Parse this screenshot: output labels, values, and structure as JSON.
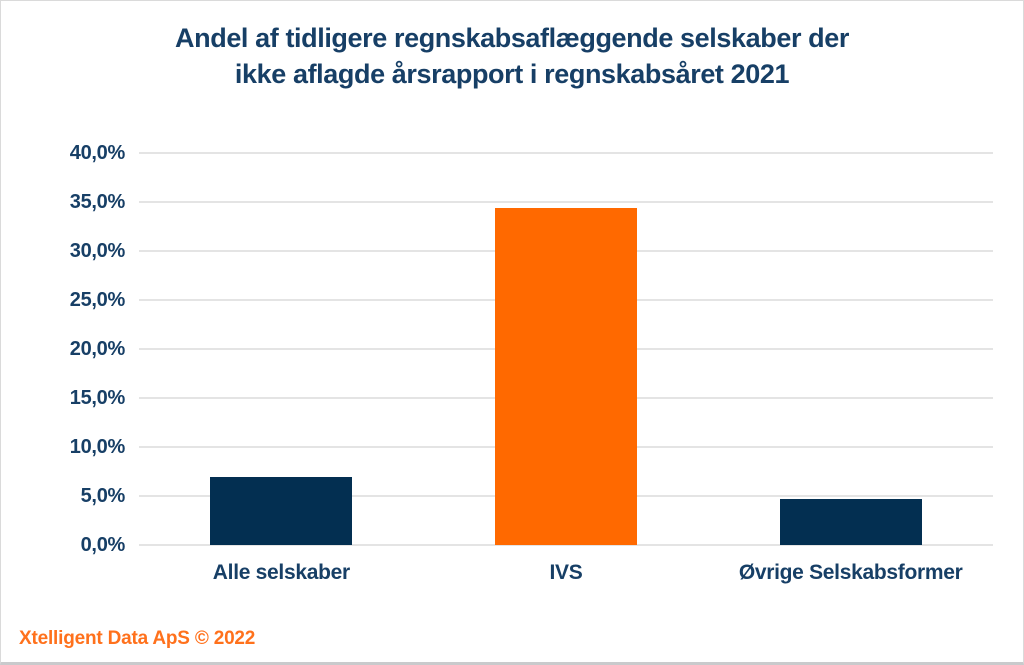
{
  "page": {
    "title": "Andel af tidligere regnskabsaflæggende selskaber der\nikke aflagde årsrapport i regnskabsåret 2021",
    "footer": "Xtelligent Data ApS © 2022"
  },
  "colors": {
    "title_text": "#173f66",
    "axis_text": "#173f66",
    "bar_navy": "#032f51",
    "bar_orange": "#ff6900",
    "footer_text": "#ff711c",
    "gridline": "#e4e4e4",
    "frame_border": "#dadada",
    "frame_border_bottom": "#c9cacc"
  },
  "chart_data": {
    "type": "bar",
    "title": "Andel af tidligere regnskabsaflæggende selskaber der ikke aflagde årsrapport i regnskabsåret 2021",
    "categories": [
      "Alle selskaber",
      "IVS",
      "Øvrige Selskabsformer"
    ],
    "values": [
      6.9,
      34.4,
      4.7
    ],
    "unit": "%",
    "bar_colors": [
      "#032f51",
      "#ff6900",
      "#032f51"
    ],
    "xlabel": "",
    "ylabel": "",
    "ylim": [
      0,
      40
    ],
    "ytick_step": 5,
    "ytick_labels": [
      "0,0%",
      "5,0%",
      "10,0%",
      "15,0%",
      "20,0%",
      "25,0%",
      "30,0%",
      "35,0%",
      "40,0%"
    ],
    "grid": true,
    "legend": false
  }
}
